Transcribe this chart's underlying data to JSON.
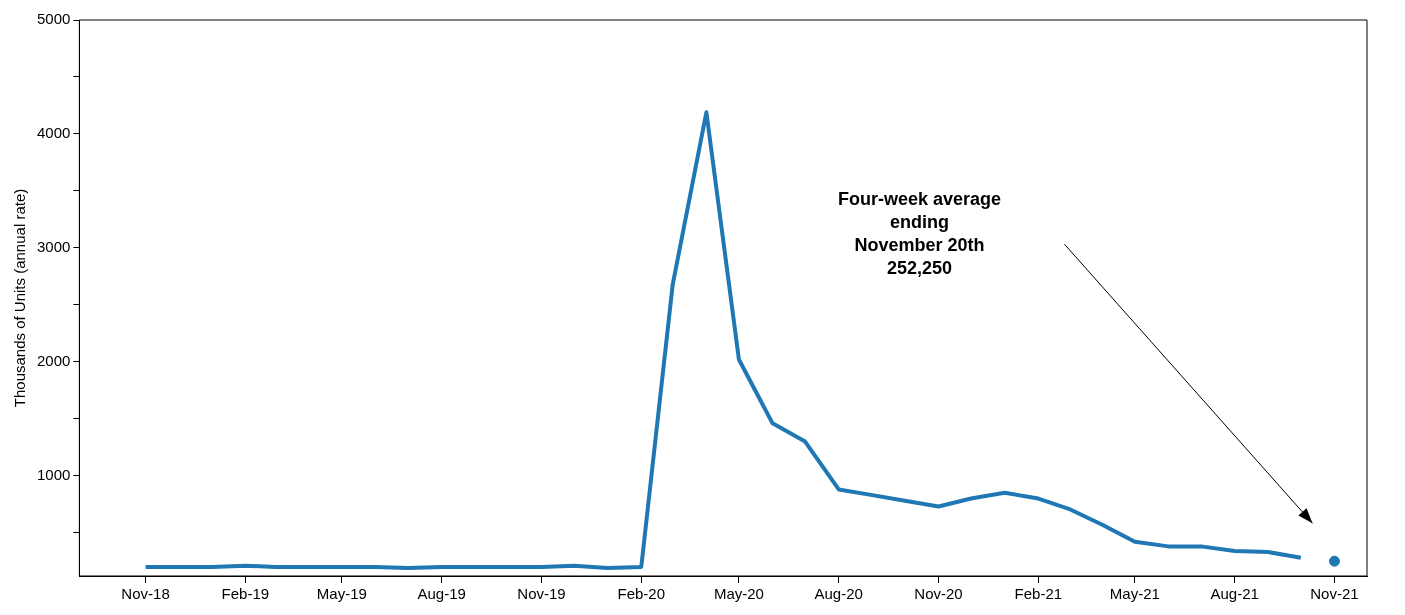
{
  "chart_data": {
    "type": "line",
    "ylabel": "Thousands of Units (annual rate)",
    "x": [
      "2018-11",
      "2018-12",
      "2019-01",
      "2019-02",
      "2019-03",
      "2019-04",
      "2019-05",
      "2019-06",
      "2019-07",
      "2019-08",
      "2019-09",
      "2019-10",
      "2019-11",
      "2019-12",
      "2020-01",
      "2020-02",
      "2020-03",
      "2020-04",
      "2020-05",
      "2020-06",
      "2020-07",
      "2020-08",
      "2020-09",
      "2020-10",
      "2020-11",
      "2020-12",
      "2021-01",
      "2021-02",
      "2021-03",
      "2021-04",
      "2021-05",
      "2021-06",
      "2021-07",
      "2021-08",
      "2021-09",
      "2021-10"
    ],
    "series": [
      {
        "color": "#1f77b4",
        "values": [
          200,
          200,
          200,
          210,
          200,
          200,
          200,
          200,
          190,
          200,
          200,
          200,
          200,
          210,
          190,
          200,
          2680,
          4190,
          2020,
          1460,
          1300,
          880,
          830,
          780,
          730,
          800,
          850,
          800,
          710,
          570,
          420,
          380,
          380,
          340,
          330,
          280
        ]
      },
      {
        "type": "scatter",
        "color": "#1f77b4",
        "x": [
          "2021-11"
        ],
        "values": [
          250
        ]
      }
    ],
    "xlim": [
      "2018-09",
      "2021-12"
    ],
    "xticks": [
      {
        "value": "2018-11",
        "label": "Nov-18"
      },
      {
        "value": "2019-02",
        "label": "Feb-19"
      },
      {
        "value": "2019-05",
        "label": "May-19"
      },
      {
        "value": "2019-08",
        "label": "Aug-19"
      },
      {
        "value": "2019-11",
        "label": "Nov-19"
      },
      {
        "value": "2020-02",
        "label": "Feb-20"
      },
      {
        "value": "2020-05",
        "label": "May-20"
      },
      {
        "value": "2020-08",
        "label": "Aug-20"
      },
      {
        "value": "2020-11",
        "label": "Nov-20"
      },
      {
        "value": "2021-02",
        "label": "Feb-21"
      },
      {
        "value": "2021-05",
        "label": "May-21"
      },
      {
        "value": "2021-08",
        "label": "Aug-21"
      },
      {
        "value": "2021-11",
        "label": "Nov-21"
      }
    ],
    "ylim": [
      120,
      5000
    ],
    "yticks": [
      {
        "value": 500,
        "label": null
      },
      1000,
      {
        "value": 1500,
        "label": null
      },
      2000,
      {
        "value": 2500,
        "label": null
      },
      3000,
      {
        "value": 3500,
        "label": null
      },
      4000,
      {
        "value": 4500,
        "label": null
      },
      5000
    ],
    "grid": false,
    "legend": false,
    "line_style": "solid",
    "annotations": [
      "Four-week average\nending\nNovember 20th\n252,250"
    ]
  }
}
